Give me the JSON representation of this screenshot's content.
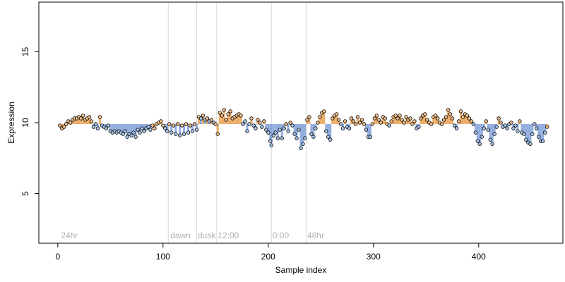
{
  "chart_data": {
    "type": "scatter",
    "xlabel": "Sample index",
    "ylabel": "Expression",
    "xlim": [
      -18,
      480
    ],
    "ylim": [
      1.5,
      18.5
    ],
    "x_ticks": [
      0,
      100,
      200,
      300,
      400
    ],
    "y_ticks": [
      5,
      10,
      15
    ],
    "vertical_lines": [
      105,
      132,
      151,
      203,
      236
    ],
    "annotations": [
      {
        "x": 3,
        "text": "24hr"
      },
      {
        "x": 107,
        "text": "dawn"
      },
      {
        "x": 133,
        "text": "dusk"
      },
      {
        "x": 152,
        "text": "12:00"
      },
      {
        "x": 204,
        "text": "0:00"
      },
      {
        "x": 237,
        "text": "48hr"
      }
    ],
    "colors": {
      "point_fill_a": "#f2c08c",
      "point_fill_b": "#a9c6ea",
      "bar_a": "#e9a050",
      "bar_b": "#7f9fd8",
      "grid": "#d9d9d9",
      "annotation": "#b0b0b0"
    },
    "baseline": 9.9,
    "points": [
      {
        "x": 2,
        "y": 9.8,
        "g": "a"
      },
      {
        "x": 4,
        "y": 9.6,
        "g": "a"
      },
      {
        "x": 6,
        "y": 9.7,
        "g": "a"
      },
      {
        "x": 8,
        "y": 9.9,
        "g": "a"
      },
      {
        "x": 10,
        "y": 10.1,
        "g": "a"
      },
      {
        "x": 12,
        "y": 10.0,
        "g": "a"
      },
      {
        "x": 14,
        "y": 10.2,
        "g": "a"
      },
      {
        "x": 16,
        "y": 10.3,
        "g": "a"
      },
      {
        "x": 18,
        "y": 10.3,
        "g": "a"
      },
      {
        "x": 20,
        "y": 10.4,
        "g": "a"
      },
      {
        "x": 22,
        "y": 10.3,
        "g": "a"
      },
      {
        "x": 24,
        "y": 10.5,
        "g": "a"
      },
      {
        "x": 26,
        "y": 10.2,
        "g": "a"
      },
      {
        "x": 28,
        "y": 10.3,
        "g": "a"
      },
      {
        "x": 30,
        "y": 10.4,
        "g": "a"
      },
      {
        "x": 32,
        "y": 10.1,
        "g": "a"
      },
      {
        "x": 34,
        "y": 9.7,
        "g": "b"
      },
      {
        "x": 36,
        "y": 9.9,
        "g": "b"
      },
      {
        "x": 38,
        "y": 9.6,
        "g": "b"
      },
      {
        "x": 40,
        "y": 10.4,
        "g": "a"
      },
      {
        "x": 42,
        "y": 9.8,
        "g": "b"
      },
      {
        "x": 44,
        "y": 9.7,
        "g": "b"
      },
      {
        "x": 46,
        "y": 9.6,
        "g": "b"
      },
      {
        "x": 48,
        "y": 9.8,
        "g": "b"
      },
      {
        "x": 50,
        "y": 9.4,
        "g": "b"
      },
      {
        "x": 52,
        "y": 9.3,
        "g": "b"
      },
      {
        "x": 54,
        "y": 9.4,
        "g": "b"
      },
      {
        "x": 56,
        "y": 9.3,
        "g": "b"
      },
      {
        "x": 58,
        "y": 9.4,
        "g": "b"
      },
      {
        "x": 60,
        "y": 9.3,
        "g": "b"
      },
      {
        "x": 62,
        "y": 9.2,
        "g": "b"
      },
      {
        "x": 64,
        "y": 9.4,
        "g": "b"
      },
      {
        "x": 66,
        "y": 9.0,
        "g": "b"
      },
      {
        "x": 68,
        "y": 9.2,
        "g": "b"
      },
      {
        "x": 70,
        "y": 9.1,
        "g": "b"
      },
      {
        "x": 72,
        "y": 9.3,
        "g": "b"
      },
      {
        "x": 74,
        "y": 9.0,
        "g": "b"
      },
      {
        "x": 76,
        "y": 9.5,
        "g": "b"
      },
      {
        "x": 78,
        "y": 9.3,
        "g": "b"
      },
      {
        "x": 80,
        "y": 9.6,
        "g": "b"
      },
      {
        "x": 82,
        "y": 9.4,
        "g": "b"
      },
      {
        "x": 84,
        "y": 9.6,
        "g": "b"
      },
      {
        "x": 86,
        "y": 9.7,
        "g": "b"
      },
      {
        "x": 88,
        "y": 9.5,
        "g": "b"
      },
      {
        "x": 90,
        "y": 9.8,
        "g": "a"
      },
      {
        "x": 92,
        "y": 9.6,
        "g": "a"
      },
      {
        "x": 94,
        "y": 9.9,
        "g": "a"
      },
      {
        "x": 96,
        "y": 10.0,
        "g": "a"
      },
      {
        "x": 98,
        "y": 10.1,
        "g": "a"
      },
      {
        "x": 100,
        "y": 9.8,
        "g": "a"
      },
      {
        "x": 102,
        "y": 9.6,
        "g": "b"
      },
      {
        "x": 104,
        "y": 9.4,
        "g": "b"
      },
      {
        "x": 106,
        "y": 9.9,
        "g": "a"
      },
      {
        "x": 108,
        "y": 9.3,
        "g": "b"
      },
      {
        "x": 110,
        "y": 9.8,
        "g": "a"
      },
      {
        "x": 112,
        "y": 9.2,
        "g": "b"
      },
      {
        "x": 114,
        "y": 9.9,
        "g": "a"
      },
      {
        "x": 116,
        "y": 9.1,
        "g": "b"
      },
      {
        "x": 118,
        "y": 9.8,
        "g": "a"
      },
      {
        "x": 120,
        "y": 9.2,
        "g": "b"
      },
      {
        "x": 122,
        "y": 9.9,
        "g": "a"
      },
      {
        "x": 124,
        "y": 9.3,
        "g": "b"
      },
      {
        "x": 126,
        "y": 9.8,
        "g": "a"
      },
      {
        "x": 128,
        "y": 9.4,
        "g": "b"
      },
      {
        "x": 130,
        "y": 9.9,
        "g": "a"
      },
      {
        "x": 132,
        "y": 9.5,
        "g": "b"
      },
      {
        "x": 134,
        "y": 10.4,
        "g": "a"
      },
      {
        "x": 136,
        "y": 10.3,
        "g": "b"
      },
      {
        "x": 138,
        "y": 10.5,
        "g": "a"
      },
      {
        "x": 140,
        "y": 10.2,
        "g": "b"
      },
      {
        "x": 142,
        "y": 10.3,
        "g": "a"
      },
      {
        "x": 144,
        "y": 10.1,
        "g": "b"
      },
      {
        "x": 146,
        "y": 10.2,
        "g": "a"
      },
      {
        "x": 148,
        "y": 10.0,
        "g": "b"
      },
      {
        "x": 150,
        "y": 9.9,
        "g": "a"
      },
      {
        "x": 152,
        "y": 9.2,
        "g": "a"
      },
      {
        "x": 154,
        "y": 10.7,
        "g": "a"
      },
      {
        "x": 156,
        "y": 10.5,
        "g": "a"
      },
      {
        "x": 158,
        "y": 10.9,
        "g": "a"
      },
      {
        "x": 160,
        "y": 10.2,
        "g": "a"
      },
      {
        "x": 162,
        "y": 10.6,
        "g": "a"
      },
      {
        "x": 164,
        "y": 10.8,
        "g": "a"
      },
      {
        "x": 166,
        "y": 10.3,
        "g": "a"
      },
      {
        "x": 168,
        "y": 10.4,
        "g": "a"
      },
      {
        "x": 170,
        "y": 10.5,
        "g": "a"
      },
      {
        "x": 172,
        "y": 10.6,
        "g": "a"
      },
      {
        "x": 174,
        "y": 10.5,
        "g": "a"
      },
      {
        "x": 176,
        "y": 9.9,
        "g": "b"
      },
      {
        "x": 178,
        "y": 10.1,
        "g": "b"
      },
      {
        "x": 180,
        "y": 9.4,
        "g": "b"
      },
      {
        "x": 182,
        "y": 9.9,
        "g": "b"
      },
      {
        "x": 184,
        "y": 10.3,
        "g": "a"
      },
      {
        "x": 186,
        "y": 9.8,
        "g": "b"
      },
      {
        "x": 188,
        "y": 9.6,
        "g": "b"
      },
      {
        "x": 190,
        "y": 10.2,
        "g": "a"
      },
      {
        "x": 192,
        "y": 10.0,
        "g": "a"
      },
      {
        "x": 194,
        "y": 9.7,
        "g": "b"
      },
      {
        "x": 196,
        "y": 10.1,
        "g": "a"
      },
      {
        "x": 198,
        "y": 9.5,
        "g": "b"
      },
      {
        "x": 200,
        "y": 9.3,
        "g": "b"
      },
      {
        "x": 202,
        "y": 8.7,
        "g": "b"
      },
      {
        "x": 203,
        "y": 8.4,
        "g": "b"
      },
      {
        "x": 205,
        "y": 9.1,
        "g": "b"
      },
      {
        "x": 207,
        "y": 9.3,
        "g": "b"
      },
      {
        "x": 209,
        "y": 8.9,
        "g": "b"
      },
      {
        "x": 211,
        "y": 9.5,
        "g": "b"
      },
      {
        "x": 213,
        "y": 8.9,
        "g": "b"
      },
      {
        "x": 215,
        "y": 9.6,
        "g": "b"
      },
      {
        "x": 217,
        "y": 9.9,
        "g": "a"
      },
      {
        "x": 219,
        "y": 9.4,
        "g": "b"
      },
      {
        "x": 221,
        "y": 10.0,
        "g": "a"
      },
      {
        "x": 223,
        "y": 9.8,
        "g": "b"
      },
      {
        "x": 225,
        "y": 9.2,
        "g": "b"
      },
      {
        "x": 227,
        "y": 8.9,
        "g": "b"
      },
      {
        "x": 229,
        "y": 9.5,
        "g": "b"
      },
      {
        "x": 231,
        "y": 8.2,
        "g": "b"
      },
      {
        "x": 233,
        "y": 8.5,
        "g": "b"
      },
      {
        "x": 235,
        "y": 8.9,
        "g": "b"
      },
      {
        "x": 237,
        "y": 10.2,
        "g": "a"
      },
      {
        "x": 239,
        "y": 10.4,
        "g": "a"
      },
      {
        "x": 241,
        "y": 9.2,
        "g": "b"
      },
      {
        "x": 243,
        "y": 9.0,
        "g": "b"
      },
      {
        "x": 245,
        "y": 9.6,
        "g": "b"
      },
      {
        "x": 247,
        "y": 10.0,
        "g": "a"
      },
      {
        "x": 249,
        "y": 10.4,
        "g": "a"
      },
      {
        "x": 251,
        "y": 10.7,
        "g": "a"
      },
      {
        "x": 253,
        "y": 10.8,
        "g": "a"
      },
      {
        "x": 255,
        "y": 9.4,
        "g": "b"
      },
      {
        "x": 257,
        "y": 9.0,
        "g": "b"
      },
      {
        "x": 259,
        "y": 8.8,
        "g": "b"
      },
      {
        "x": 261,
        "y": 10.3,
        "g": "a"
      },
      {
        "x": 263,
        "y": 10.5,
        "g": "a"
      },
      {
        "x": 265,
        "y": 10.6,
        "g": "a"
      },
      {
        "x": 267,
        "y": 10.2,
        "g": "a"
      },
      {
        "x": 269,
        "y": 9.9,
        "g": "b"
      },
      {
        "x": 271,
        "y": 9.6,
        "g": "b"
      },
      {
        "x": 273,
        "y": 10.1,
        "g": "a"
      },
      {
        "x": 275,
        "y": 9.7,
        "g": "b"
      },
      {
        "x": 277,
        "y": 9.6,
        "g": "b"
      },
      {
        "x": 279,
        "y": 10.3,
        "g": "a"
      },
      {
        "x": 281,
        "y": 10.1,
        "g": "a"
      },
      {
        "x": 283,
        "y": 9.9,
        "g": "a"
      },
      {
        "x": 285,
        "y": 10.4,
        "g": "a"
      },
      {
        "x": 287,
        "y": 10.0,
        "g": "a"
      },
      {
        "x": 289,
        "y": 10.2,
        "g": "a"
      },
      {
        "x": 291,
        "y": 9.9,
        "g": "a"
      },
      {
        "x": 293,
        "y": 9.5,
        "g": "b"
      },
      {
        "x": 295,
        "y": 9.0,
        "g": "b"
      },
      {
        "x": 297,
        "y": 9.0,
        "g": "b"
      },
      {
        "x": 299,
        "y": 9.9,
        "g": "a"
      },
      {
        "x": 301,
        "y": 10.3,
        "g": "a"
      },
      {
        "x": 303,
        "y": 10.5,
        "g": "a"
      },
      {
        "x": 305,
        "y": 10.2,
        "g": "a"
      },
      {
        "x": 307,
        "y": 10.0,
        "g": "a"
      },
      {
        "x": 309,
        "y": 10.4,
        "g": "a"
      },
      {
        "x": 311,
        "y": 10.3,
        "g": "a"
      },
      {
        "x": 313,
        "y": 9.9,
        "g": "a"
      },
      {
        "x": 315,
        "y": 9.8,
        "g": "b"
      },
      {
        "x": 317,
        "y": 10.1,
        "g": "a"
      },
      {
        "x": 319,
        "y": 10.4,
        "g": "a"
      },
      {
        "x": 321,
        "y": 10.5,
        "g": "a"
      },
      {
        "x": 323,
        "y": 10.3,
        "g": "a"
      },
      {
        "x": 325,
        "y": 10.5,
        "g": "a"
      },
      {
        "x": 327,
        "y": 10.2,
        "g": "a"
      },
      {
        "x": 329,
        "y": 10.0,
        "g": "a"
      },
      {
        "x": 331,
        "y": 10.4,
        "g": "a"
      },
      {
        "x": 333,
        "y": 10.2,
        "g": "a"
      },
      {
        "x": 335,
        "y": 10.3,
        "g": "a"
      },
      {
        "x": 337,
        "y": 9.9,
        "g": "a"
      },
      {
        "x": 339,
        "y": 10.1,
        "g": "a"
      },
      {
        "x": 341,
        "y": 9.6,
        "g": "b"
      },
      {
        "x": 343,
        "y": 9.7,
        "g": "b"
      },
      {
        "x": 345,
        "y": 10.3,
        "g": "a"
      },
      {
        "x": 347,
        "y": 10.5,
        "g": "a"
      },
      {
        "x": 349,
        "y": 10.6,
        "g": "a"
      },
      {
        "x": 351,
        "y": 10.2,
        "g": "a"
      },
      {
        "x": 353,
        "y": 10.0,
        "g": "a"
      },
      {
        "x": 355,
        "y": 9.9,
        "g": "a"
      },
      {
        "x": 357,
        "y": 10.4,
        "g": "a"
      },
      {
        "x": 359,
        "y": 10.5,
        "g": "a"
      },
      {
        "x": 361,
        "y": 10.3,
        "g": "a"
      },
      {
        "x": 363,
        "y": 10.0,
        "g": "a"
      },
      {
        "x": 365,
        "y": 9.9,
        "g": "a"
      },
      {
        "x": 367,
        "y": 10.2,
        "g": "a"
      },
      {
        "x": 369,
        "y": 10.4,
        "g": "a"
      },
      {
        "x": 371,
        "y": 10.9,
        "g": "a"
      },
      {
        "x": 373,
        "y": 10.6,
        "g": "a"
      },
      {
        "x": 375,
        "y": 10.3,
        "g": "a"
      },
      {
        "x": 377,
        "y": 9.8,
        "g": "b"
      },
      {
        "x": 379,
        "y": 9.6,
        "g": "b"
      },
      {
        "x": 381,
        "y": 10.1,
        "g": "a"
      },
      {
        "x": 383,
        "y": 10.8,
        "g": "a"
      },
      {
        "x": 385,
        "y": 10.4,
        "g": "a"
      },
      {
        "x": 387,
        "y": 10.6,
        "g": "a"
      },
      {
        "x": 389,
        "y": 10.5,
        "g": "a"
      },
      {
        "x": 391,
        "y": 10.3,
        "g": "a"
      },
      {
        "x": 393,
        "y": 10.1,
        "g": "a"
      },
      {
        "x": 395,
        "y": 9.9,
        "g": "b"
      },
      {
        "x": 397,
        "y": 9.3,
        "g": "b"
      },
      {
        "x": 399,
        "y": 8.7,
        "g": "b"
      },
      {
        "x": 401,
        "y": 8.5,
        "g": "b"
      },
      {
        "x": 403,
        "y": 9.0,
        "g": "b"
      },
      {
        "x": 405,
        "y": 9.6,
        "g": "b"
      },
      {
        "x": 407,
        "y": 10.1,
        "g": "a"
      },
      {
        "x": 409,
        "y": 9.5,
        "g": "b"
      },
      {
        "x": 411,
        "y": 8.8,
        "g": "b"
      },
      {
        "x": 413,
        "y": 8.5,
        "g": "b"
      },
      {
        "x": 415,
        "y": 9.2,
        "g": "b"
      },
      {
        "x": 417,
        "y": 9.7,
        "g": "b"
      },
      {
        "x": 419,
        "y": 10.3,
        "g": "a"
      },
      {
        "x": 421,
        "y": 10.0,
        "g": "a"
      },
      {
        "x": 423,
        "y": 9.7,
        "g": "b"
      },
      {
        "x": 425,
        "y": 9.8,
        "g": "b"
      },
      {
        "x": 427,
        "y": 9.6,
        "g": "b"
      },
      {
        "x": 429,
        "y": 9.9,
        "g": "b"
      },
      {
        "x": 431,
        "y": 10.0,
        "g": "a"
      },
      {
        "x": 433,
        "y": 9.6,
        "g": "b"
      },
      {
        "x": 435,
        "y": 9.8,
        "g": "b"
      },
      {
        "x": 437,
        "y": 9.4,
        "g": "b"
      },
      {
        "x": 439,
        "y": 10.1,
        "g": "a"
      },
      {
        "x": 441,
        "y": 9.3,
        "g": "b"
      },
      {
        "x": 443,
        "y": 9.2,
        "g": "b"
      },
      {
        "x": 445,
        "y": 8.8,
        "g": "b"
      },
      {
        "x": 447,
        "y": 8.6,
        "g": "b"
      },
      {
        "x": 449,
        "y": 8.5,
        "g": "b"
      },
      {
        "x": 451,
        "y": 9.2,
        "g": "b"
      },
      {
        "x": 453,
        "y": 9.9,
        "g": "b"
      },
      {
        "x": 455,
        "y": 9.6,
        "g": "b"
      },
      {
        "x": 457,
        "y": 9.0,
        "g": "b"
      },
      {
        "x": 459,
        "y": 8.7,
        "g": "b"
      },
      {
        "x": 461,
        "y": 8.7,
        "g": "b"
      },
      {
        "x": 463,
        "y": 9.3,
        "g": "b"
      },
      {
        "x": 465,
        "y": 9.7,
        "g": "a"
      }
    ]
  }
}
